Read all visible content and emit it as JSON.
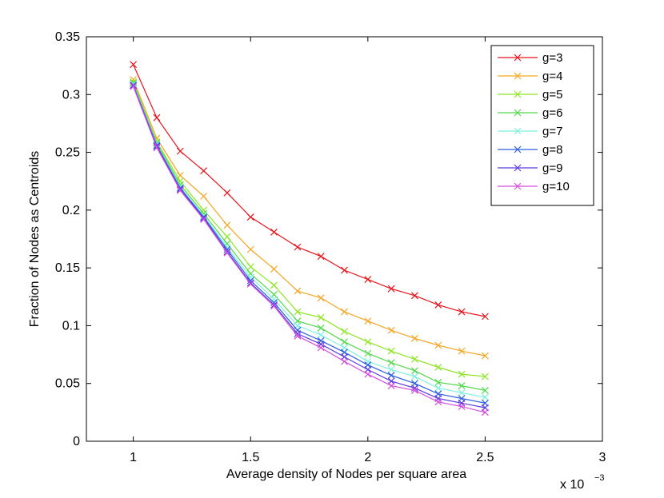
{
  "chart_data": {
    "type": "line",
    "title": "",
    "xlabel": "Average density of Nodes per square area",
    "ylabel": "Fraction of Nodes as Centroids",
    "x_multiplier": "x 10",
    "x_multiplier_exp": "−3",
    "xlim": [
      0.8,
      3.0
    ],
    "ylim": [
      0,
      0.35
    ],
    "xticks": [
      1,
      1.5,
      2,
      2.5,
      3
    ],
    "xtick_labels": [
      "1",
      "1.5",
      "2",
      "2.5",
      "3"
    ],
    "yticks": [
      0,
      0.05,
      0.1,
      0.15,
      0.2,
      0.25,
      0.3,
      0.35
    ],
    "ytick_labels": [
      "0",
      "0.05",
      "0.1",
      "0.15",
      "0.2",
      "0.25",
      "0.3",
      "0.35"
    ],
    "grid": false,
    "legend_position": "top-right",
    "marker": "x",
    "x": [
      1.0,
      1.1,
      1.2,
      1.3,
      1.4,
      1.5,
      1.6,
      1.7,
      1.8,
      1.9,
      2.0,
      2.1,
      2.2,
      2.3,
      2.4,
      2.5
    ],
    "series": [
      {
        "name": "g=3",
        "color": "#e8141c",
        "values": [
          0.326,
          0.28,
          0.251,
          0.234,
          0.215,
          0.194,
          0.181,
          0.168,
          0.16,
          0.148,
          0.14,
          0.132,
          0.126,
          0.118,
          0.112,
          0.108
        ]
      },
      {
        "name": "g=4",
        "color": "#f5a623",
        "values": [
          0.313,
          0.262,
          0.23,
          0.212,
          0.187,
          0.166,
          0.149,
          0.13,
          0.124,
          0.112,
          0.104,
          0.096,
          0.089,
          0.083,
          0.078,
          0.074
        ]
      },
      {
        "name": "g=5",
        "color": "#8ee625",
        "values": [
          0.311,
          0.259,
          0.225,
          0.2,
          0.177,
          0.151,
          0.135,
          0.112,
          0.107,
          0.095,
          0.086,
          0.078,
          0.071,
          0.064,
          0.058,
          0.056
        ]
      },
      {
        "name": "g=6",
        "color": "#52d84b",
        "values": [
          0.31,
          0.258,
          0.222,
          0.197,
          0.171,
          0.145,
          0.127,
          0.104,
          0.098,
          0.086,
          0.076,
          0.068,
          0.061,
          0.051,
          0.048,
          0.044
        ]
      },
      {
        "name": "g=7",
        "color": "#7ff0e0",
        "values": [
          0.309,
          0.257,
          0.22,
          0.195,
          0.168,
          0.142,
          0.123,
          0.1,
          0.092,
          0.081,
          0.069,
          0.062,
          0.056,
          0.046,
          0.042,
          0.038
        ]
      },
      {
        "name": "g=8",
        "color": "#2b5fe0",
        "values": [
          0.308,
          0.256,
          0.219,
          0.194,
          0.166,
          0.139,
          0.12,
          0.096,
          0.087,
          0.077,
          0.066,
          0.057,
          0.05,
          0.041,
          0.037,
          0.033
        ]
      },
      {
        "name": "g=9",
        "color": "#5b3be0",
        "values": [
          0.308,
          0.255,
          0.218,
          0.193,
          0.164,
          0.137,
          0.118,
          0.093,
          0.084,
          0.073,
          0.062,
          0.052,
          0.046,
          0.037,
          0.033,
          0.029
        ]
      },
      {
        "name": "g=10",
        "color": "#d64de0",
        "values": [
          0.307,
          0.254,
          0.217,
          0.192,
          0.163,
          0.136,
          0.117,
          0.091,
          0.081,
          0.069,
          0.058,
          0.048,
          0.044,
          0.034,
          0.03,
          0.025
        ]
      }
    ]
  }
}
